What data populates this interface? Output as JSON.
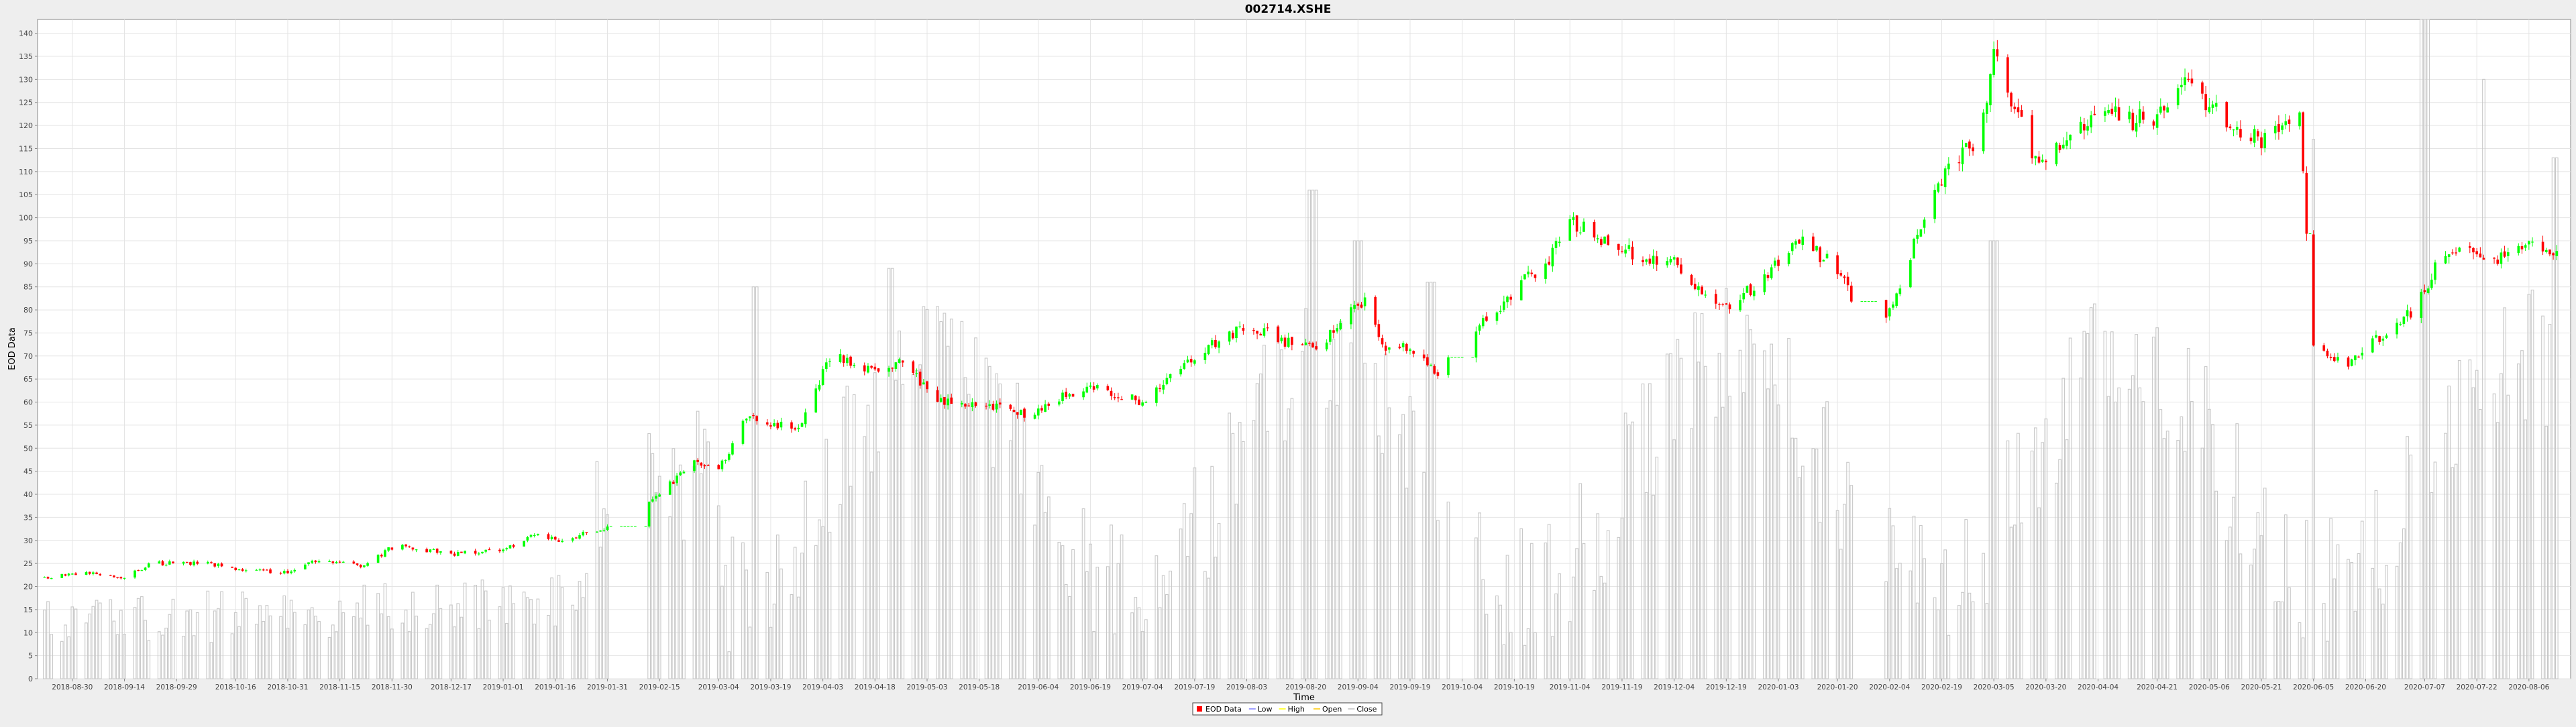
{
  "chart_data": {
    "type": "candlestick",
    "title": "002714.XSHE",
    "xlabel": "Time",
    "ylabel": "EOD Data",
    "ylim": [
      0,
      143
    ],
    "yticks": [
      0,
      5,
      10,
      15,
      20,
      25,
      30,
      35,
      40,
      45,
      50,
      55,
      60,
      65,
      70,
      75,
      80,
      85,
      90,
      95,
      100,
      105,
      110,
      115,
      120,
      125,
      130,
      135,
      140
    ],
    "xlim": [
      "2018-08-20",
      "2020-08-18"
    ],
    "xticks": [
      "2018-08-30",
      "2018-09-14",
      "2018-09-29",
      "2018-10-16",
      "2018-10-31",
      "2018-11-15",
      "2018-11-30",
      "2018-12-17",
      "2019-01-01",
      "2019-01-16",
      "2019-01-31",
      "2019-02-15",
      "2019-03-04",
      "2019-03-19",
      "2019-04-03",
      "2019-04-18",
      "2019-05-03",
      "2019-05-18",
      "2019-06-04",
      "2019-06-19",
      "2019-07-04",
      "2019-07-19",
      "2019-08-03",
      "2019-08-20",
      "2019-09-04",
      "2019-09-19",
      "2019-10-04",
      "2019-10-19",
      "2019-11-04",
      "2019-11-19",
      "2019-12-04",
      "2019-12-19",
      "2020-01-03",
      "2020-01-20",
      "2020-02-04",
      "2020-02-19",
      "2020-03-05",
      "2020-03-20",
      "2020-04-04",
      "2020-04-21",
      "2020-05-06",
      "2020-05-21",
      "2020-06-05",
      "2020-06-20",
      "2020-07-07",
      "2020-07-22",
      "2020-08-06"
    ],
    "anchors": [
      [
        "2018-08-22",
        22
      ],
      [
        "2018-09-05",
        23
      ],
      [
        "2018-09-14",
        22
      ],
      [
        "2018-09-22",
        25
      ],
      [
        "2018-10-08",
        25
      ],
      [
        "2018-10-20",
        23.5
      ],
      [
        "2018-10-31",
        23
      ],
      [
        "2018-11-08",
        25.5
      ],
      [
        "2018-11-22",
        24.5
      ],
      [
        "2018-12-01",
        29
      ],
      [
        "2018-12-17",
        27
      ],
      [
        "2019-01-01",
        28
      ],
      [
        "2019-01-10",
        31
      ],
      [
        "2019-01-18",
        30
      ],
      [
        "2019-01-31",
        33
      ],
      [
        "2019-02-12",
        38
      ],
      [
        "2019-02-25",
        47
      ],
      [
        "2019-03-04",
        45
      ],
      [
        "2019-03-12",
        57
      ],
      [
        "2019-03-19",
        55
      ],
      [
        "2019-03-28",
        55
      ],
      [
        "2019-04-05",
        70
      ],
      [
        "2019-04-18",
        67
      ],
      [
        "2019-04-26",
        69
      ],
      [
        "2019-05-06",
        60
      ],
      [
        "2019-05-18",
        60
      ],
      [
        "2019-06-01",
        57
      ],
      [
        "2019-06-10",
        61
      ],
      [
        "2019-06-19",
        63
      ],
      [
        "2019-07-04",
        60
      ],
      [
        "2019-07-19",
        70
      ],
      [
        "2019-08-03",
        77
      ],
      [
        "2019-08-15",
        73
      ],
      [
        "2019-08-24",
        72
      ],
      [
        "2019-09-01",
        80
      ],
      [
        "2019-09-06",
        82
      ],
      [
        "2019-09-11",
        72
      ],
      [
        "2019-09-19",
        72
      ],
      [
        "2019-09-27",
        66
      ],
      [
        "2019-10-10",
        77
      ],
      [
        "2019-10-19",
        84
      ],
      [
        "2019-10-30",
        92
      ],
      [
        "2019-11-04",
        100
      ],
      [
        "2019-11-12",
        95
      ],
      [
        "2019-11-19",
        93
      ],
      [
        "2019-12-04",
        90
      ],
      [
        "2019-12-10",
        85
      ],
      [
        "2019-12-19",
        80
      ],
      [
        "2020-01-03",
        90
      ],
      [
        "2020-01-10",
        95
      ],
      [
        "2020-01-20",
        89
      ],
      [
        "2020-01-24",
        83
      ],
      [
        "2020-02-03",
        77
      ],
      [
        "2020-02-10",
        92
      ],
      [
        "2020-02-19",
        108
      ],
      [
        "2020-03-01",
        118
      ],
      [
        "2020-03-05",
        135
      ],
      [
        "2020-03-12",
        122
      ],
      [
        "2020-03-17",
        112
      ],
      [
        "2020-03-25",
        116
      ],
      [
        "2020-04-04",
        124
      ],
      [
        "2020-04-13",
        121
      ],
      [
        "2020-04-21",
        122
      ],
      [
        "2020-04-27",
        130
      ],
      [
        "2020-05-06",
        125
      ],
      [
        "2020-05-15",
        118
      ],
      [
        "2020-05-21",
        117
      ],
      [
        "2020-06-01",
        121
      ],
      [
        "2020-06-05",
        71
      ],
      [
        "2020-06-14",
        68
      ],
      [
        "2020-06-20",
        72
      ],
      [
        "2020-07-04",
        80
      ],
      [
        "2020-07-12",
        92
      ],
      [
        "2020-07-22",
        93
      ],
      [
        "2020-07-30",
        91
      ],
      [
        "2020-08-08",
        94
      ],
      [
        "2020-08-14",
        92
      ]
    ],
    "gaps": [
      [
        "2019-01-31",
        "2019-02-12"
      ],
      [
        "2019-09-30",
        "2019-10-08"
      ],
      [
        "2020-01-24",
        "2020-02-02"
      ],
      [
        "2020-06-03",
        "2020-06-05"
      ]
    ],
    "volume_peaks": [
      [
        "2019-03-15",
        85
      ],
      [
        "2019-04-22",
        89
      ],
      [
        "2019-08-22",
        106
      ],
      [
        "2019-09-04",
        95
      ],
      [
        "2019-09-25",
        86
      ],
      [
        "2020-03-05",
        95
      ],
      [
        "2020-06-05",
        117
      ],
      [
        "2020-07-07",
        150
      ],
      [
        "2020-07-25",
        130
      ],
      [
        "2020-08-14",
        113
      ]
    ],
    "series": [
      {
        "name": "EOD Data",
        "color": "#ff0000"
      },
      {
        "name": "Low",
        "color": "#8080ff"
      },
      {
        "name": "High",
        "color": "#ffff00"
      },
      {
        "name": "Open",
        "color": "#ffc800"
      },
      {
        "name": "Close",
        "color": "#c0c0c0"
      }
    ],
    "up_color": "#00ff00",
    "down_color": "#ff0000",
    "volume_color": "#c8c8c8",
    "grid": true,
    "legend": "bottom"
  }
}
